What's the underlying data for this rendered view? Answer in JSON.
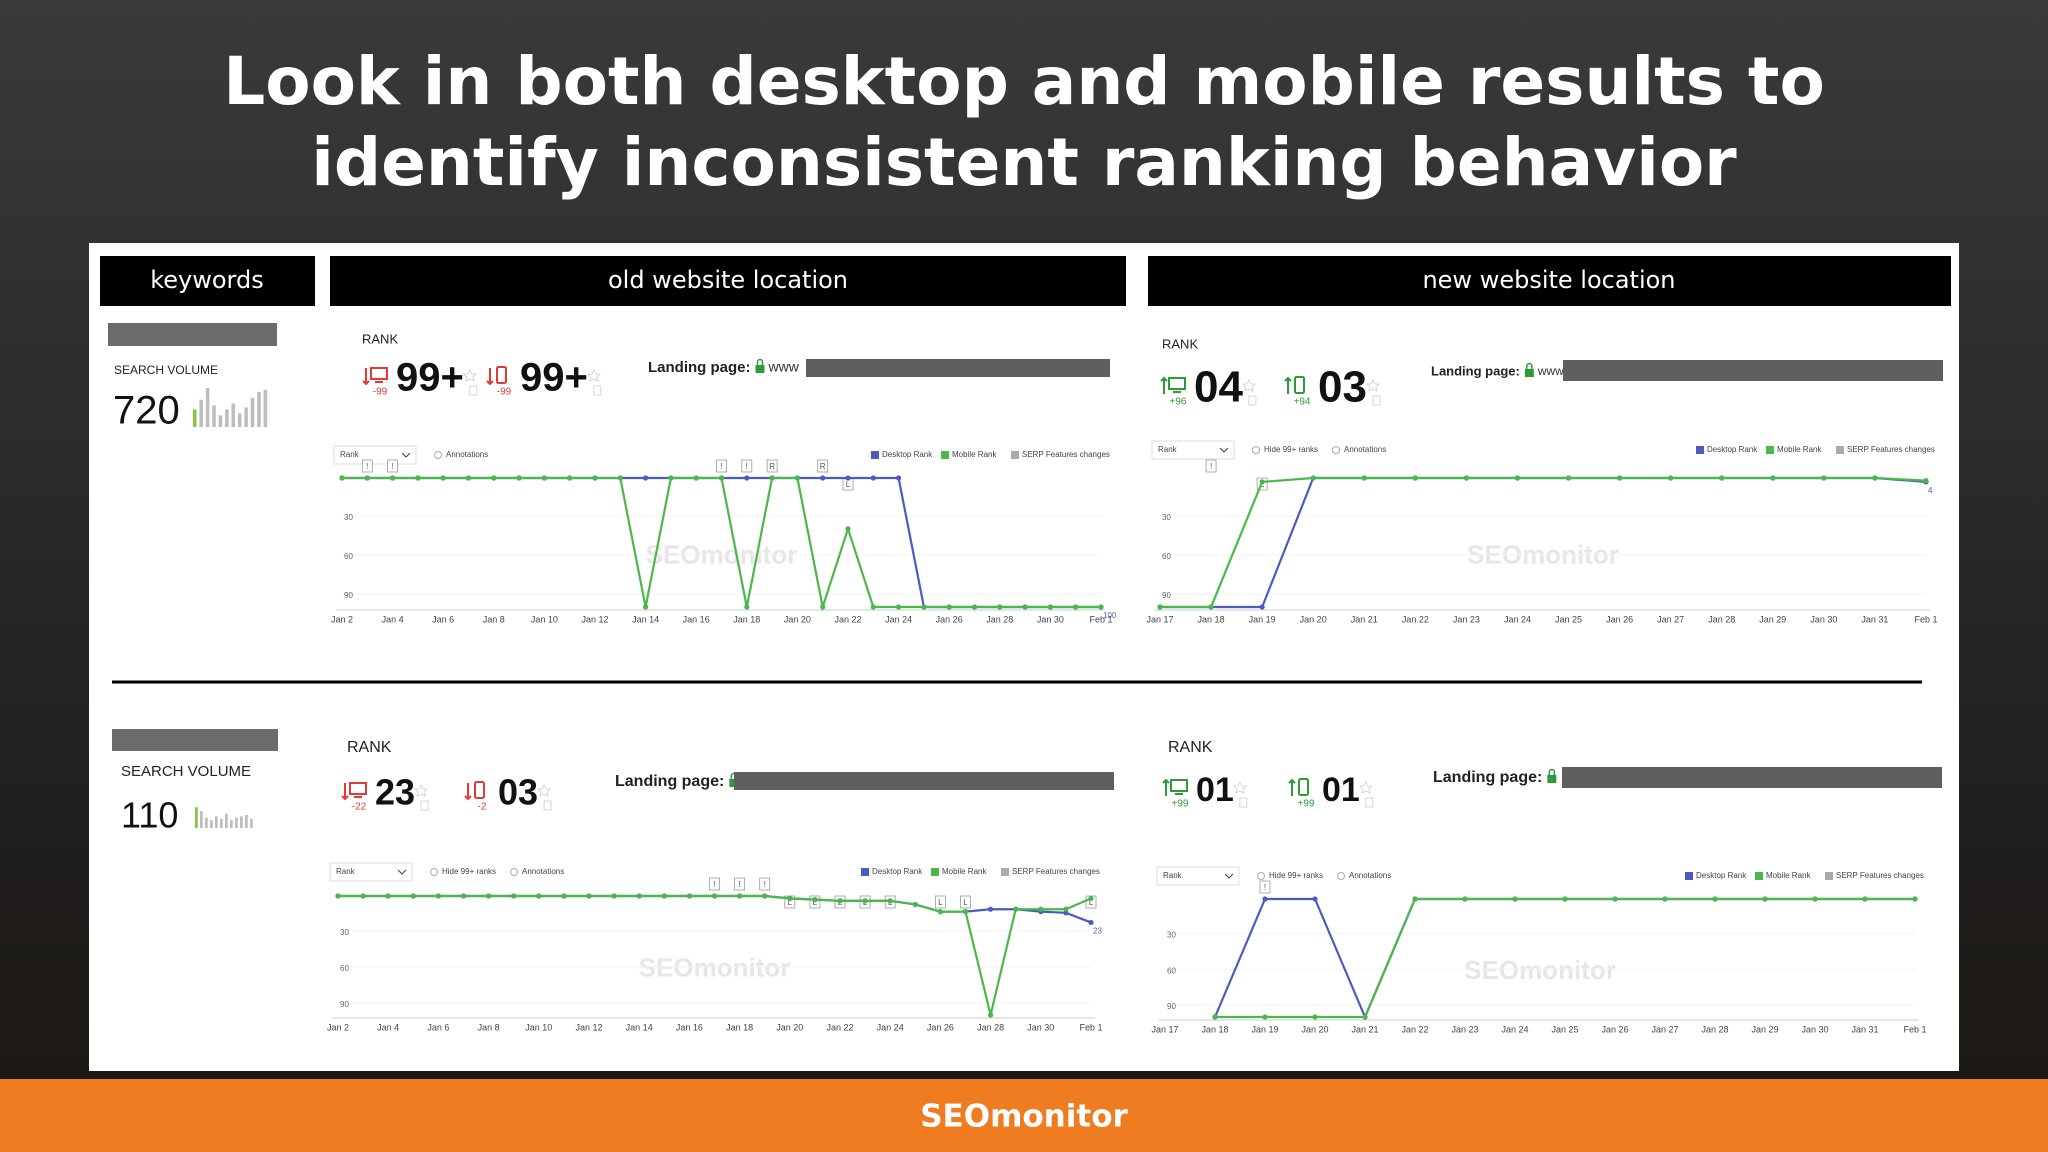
{
  "title": [
    "Look in both desktop and mobile results to",
    "identify inconsistent ranking behavior"
  ],
  "headers": {
    "keywords": "keywords",
    "old": "old website location",
    "new": "new website location"
  },
  "footer": "SEOmonitor",
  "watermark": "SEOmonitor",
  "rows": [
    {
      "keyword": {
        "search_volume_label": "SEARCH VOLUME",
        "search_volume": "720",
        "volume_history": [
          45,
          70,
          100,
          55,
          30,
          45,
          60,
          35,
          50,
          75,
          90,
          95
        ]
      },
      "old": {
        "trend": "down",
        "rank_label": "RANK",
        "desktop": {
          "rank": "99+",
          "change": "-99"
        },
        "mobile": {
          "rank": "99+",
          "change": "-99"
        },
        "landing_label": "Landing page:",
        "landing_url": "www",
        "chart": {
          "type": "line",
          "inverted": true,
          "ylim": [
            1,
            100
          ],
          "yticks": [
            30,
            60,
            90
          ],
          "x": [
            "Jan 2",
            null,
            "Jan 4",
            null,
            "Jan 6",
            null,
            "Jan 8",
            null,
            "Jan 10",
            null,
            "Jan 12",
            null,
            "Jan 14",
            null,
            "Jan 16",
            null,
            "Jan 18",
            null,
            "Jan 20",
            null,
            "Jan 22",
            null,
            "Jan 24",
            null,
            "Jan 26",
            null,
            "Jan 28",
            null,
            "Jan 30",
            null,
            "Feb 1"
          ],
          "controls": [
            "Rank",
            "Annotations"
          ],
          "serp_label": "SERP Features changes",
          "annotations": [
            {
              "index": 1,
              "text": "!"
            },
            {
              "index": 2,
              "text": "!"
            },
            {
              "index": 15,
              "text": "!"
            },
            {
              "index": 16,
              "text": "!"
            },
            {
              "index": 17,
              "text": "R"
            },
            {
              "index": 19,
              "text": "R"
            },
            {
              "index": 20,
              "text": "L"
            }
          ],
          "series": [
            {
              "name": "Desktop Rank",
              "color": "#4b5bbf",
              "label_last": true,
              "values": [
                1,
                1,
                1,
                1,
                1,
                1,
                1,
                1,
                1,
                1,
                1,
                1,
                1,
                1,
                1,
                1,
                1,
                1,
                1,
                1,
                1,
                1,
                1,
                100,
                100,
                100,
                100,
                100,
                100,
                100,
                100
              ]
            },
            {
              "name": "Mobile Rank",
              "color": "#4cb84a",
              "values": [
                1,
                1,
                1,
                1,
                1,
                1,
                1,
                1,
                1,
                1,
                1,
                1,
                100,
                1,
                1,
                1,
                100,
                1,
                1,
                100,
                40,
                100,
                100,
                100,
                100,
                100,
                100,
                100,
                100,
                100,
                100
              ]
            }
          ]
        }
      },
      "new": {
        "trend": "up",
        "rank_label": "RANK",
        "desktop": {
          "rank": "04",
          "change": "+96"
        },
        "mobile": {
          "rank": "03",
          "change": "+94"
        },
        "landing_label": "Landing page:",
        "landing_url": "www",
        "chart": {
          "type": "line",
          "inverted": true,
          "ylim": [
            1,
            100
          ],
          "yticks": [
            30,
            60,
            90
          ],
          "x": [
            "Jan 17",
            "Jan 18",
            "Jan 19",
            "Jan 20",
            "Jan 21",
            "Jan 22",
            "Jan 23",
            "Jan 24",
            "Jan 25",
            "Jan 26",
            "Jan 27",
            "Jan 28",
            "Jan 29",
            "Jan 30",
            "Jan 31",
            "Feb 1"
          ],
          "controls": [
            "Rank",
            "Hide 99+ ranks",
            "Annotations"
          ],
          "serp_label": "SERP Features changes",
          "annotations": [
            {
              "index": 1,
              "text": "!"
            },
            {
              "index": 2,
              "text": "L"
            }
          ],
          "series": [
            {
              "name": "Desktop Rank",
              "color": "#4b5bbf",
              "label_last": true,
              "values": [
                100,
                100,
                100,
                1,
                1,
                1,
                1,
                1,
                1,
                1,
                1,
                1,
                1,
                1,
                1,
                4
              ]
            },
            {
              "name": "Mobile Rank",
              "color": "#4cb84a",
              "values": [
                100,
                100,
                4,
                1,
                1,
                1,
                1,
                1,
                1,
                1,
                1,
                1,
                1,
                1,
                1,
                3
              ]
            }
          ]
        }
      }
    },
    {
      "keyword": {
        "search_volume_label": "SEARCH VOLUME",
        "search_volume": "110",
        "volume_history": [
          80,
          65,
          40,
          30,
          45,
          35,
          55,
          30,
          40,
          45,
          50,
          35
        ]
      },
      "old": {
        "trend": "down",
        "rank_label": "RANK",
        "desktop": {
          "rank": "23",
          "change": "-22"
        },
        "mobile": {
          "rank": "03",
          "change": "-2"
        },
        "landing_label": "Landing page:",
        "chart": {
          "type": "line",
          "inverted": true,
          "ylim": [
            1,
            100
          ],
          "yticks": [
            30,
            60,
            90
          ],
          "x": [
            "Jan 2",
            null,
            "Jan 4",
            null,
            "Jan 6",
            null,
            "Jan 8",
            null,
            "Jan 10",
            null,
            "Jan 12",
            null,
            "Jan 14",
            null,
            "Jan 16",
            null,
            "Jan 18",
            null,
            "Jan 20",
            null,
            "Jan 22",
            null,
            "Jan 24",
            null,
            "Jan 26",
            null,
            "Jan 28",
            null,
            "Jan 30",
            null,
            "Feb 1"
          ],
          "controls": [
            "Rank",
            "Hide 99+ ranks",
            "Annotations"
          ],
          "serp_label": "SERP Features changes",
          "annotations": [
            {
              "index": 15,
              "text": "!"
            },
            {
              "index": 16,
              "text": "!"
            },
            {
              "index": 17,
              "text": "!"
            },
            {
              "index": 18,
              "text": "L"
            },
            {
              "index": 19,
              "text": "L"
            },
            {
              "index": 20,
              "text": "L"
            },
            {
              "index": 21,
              "text": "L"
            },
            {
              "index": 22,
              "text": "L"
            },
            {
              "index": 24,
              "text": "L"
            },
            {
              "index": 25,
              "text": "L"
            },
            {
              "index": 30,
              "text": "L"
            }
          ],
          "series": [
            {
              "name": "Desktop Rank",
              "color": "#4b5bbf",
              "label_last": true,
              "values": [
                1,
                1,
                1,
                1,
                1,
                1,
                1,
                1,
                1,
                1,
                1,
                1,
                1,
                1,
                1,
                1,
                1,
                1,
                3,
                4,
                5,
                5,
                5,
                8,
                14,
                14,
                12,
                12,
                14,
                15,
                23
              ]
            },
            {
              "name": "Mobile Rank",
              "color": "#4cb84a",
              "values": [
                1,
                1,
                1,
                1,
                1,
                1,
                1,
                1,
                1,
                1,
                1,
                1,
                1,
                1,
                1,
                1,
                1,
                1,
                3,
                4,
                5,
                5,
                5,
                8,
                14,
                14,
                100,
                12,
                12,
                12,
                3
              ]
            }
          ]
        }
      },
      "new": {
        "trend": "up",
        "rank_label": "RANK",
        "desktop": {
          "rank": "01",
          "change": "+99"
        },
        "mobile": {
          "rank": "01",
          "change": "+99"
        },
        "landing_label": "Landing page:",
        "chart": {
          "type": "line",
          "inverted": true,
          "ylim": [
            1,
            100
          ],
          "yticks": [
            30,
            60,
            90
          ],
          "x": [
            "Jan 17",
            "Jan 18",
            "Jan 19",
            "Jan 20",
            "Jan 21",
            "Jan 22",
            "Jan 23",
            "Jan 24",
            "Jan 25",
            "Jan 26",
            "Jan 27",
            "Jan 28",
            "Jan 29",
            "Jan 30",
            "Jan 31",
            "Feb 1"
          ],
          "controls": [
            "Rank",
            "Hide 99+ ranks",
            "Annotations"
          ],
          "serp_label": "SERP Features changes",
          "annotations": [
            {
              "index": 2,
              "text": "!"
            }
          ],
          "series": [
            {
              "name": "Desktop Rank",
              "color": "#4b5bbf",
              "values": [
                null,
                100,
                1,
                1,
                100,
                1,
                1,
                1,
                1,
                1,
                1,
                1,
                1,
                1,
                1,
                1
              ]
            },
            {
              "name": "Mobile Rank",
              "color": "#4cb84a",
              "values": [
                null,
                100,
                100,
                100,
                100,
                1,
                1,
                1,
                1,
                1,
                1,
                1,
                1,
                1,
                1,
                1
              ]
            }
          ]
        }
      }
    }
  ]
}
